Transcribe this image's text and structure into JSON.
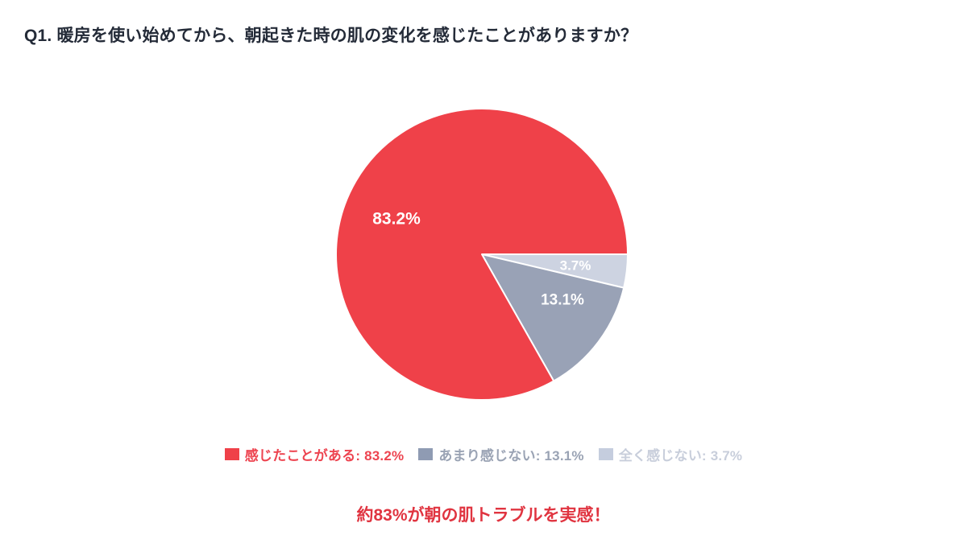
{
  "title": "Q1. 暖房を使い始めてから、朝起きた時の肌の変化を感じたことがありますか？",
  "chart_data": {
    "type": "pie",
    "title": "Q1. 暖房を使い始めてから、朝起きた時の肌の変化を感じたことがありますか？",
    "slices": [
      {
        "label": "感じたことがある",
        "value": 83.2,
        "display": "83.2%",
        "color": "#EF4149",
        "label_color": "#ffffff"
      },
      {
        "label": "あまり感じない",
        "value": 13.1,
        "display": "13.1%",
        "color": "#99A2B6",
        "label_color": "#ffffff"
      },
      {
        "label": "全く感じない",
        "value": 3.7,
        "display": "3.7%",
        "color": "#CDD3E1",
        "label_color": "#ffffff"
      }
    ],
    "legend_position": "bottom",
    "start_angle": "east (3 o'clock), small slices drawn clockwise from start",
    "grid": false
  },
  "legend": {
    "items": [
      {
        "label": "感じたことがある: 83.2%",
        "swatch": "#EF4149",
        "text_color": "#ED4450"
      },
      {
        "label": "あまり感じない: 13.1%",
        "swatch": "#8F9BB3",
        "text_color": "#9AA3B4"
      },
      {
        "label": "全く感じない: 3.7%",
        "swatch": "#C5CDDE",
        "text_color": "#C8CEDB"
      }
    ]
  },
  "footer": {
    "message": "約83%が朝の肌トラブルを実感！",
    "color": "#E03440"
  }
}
